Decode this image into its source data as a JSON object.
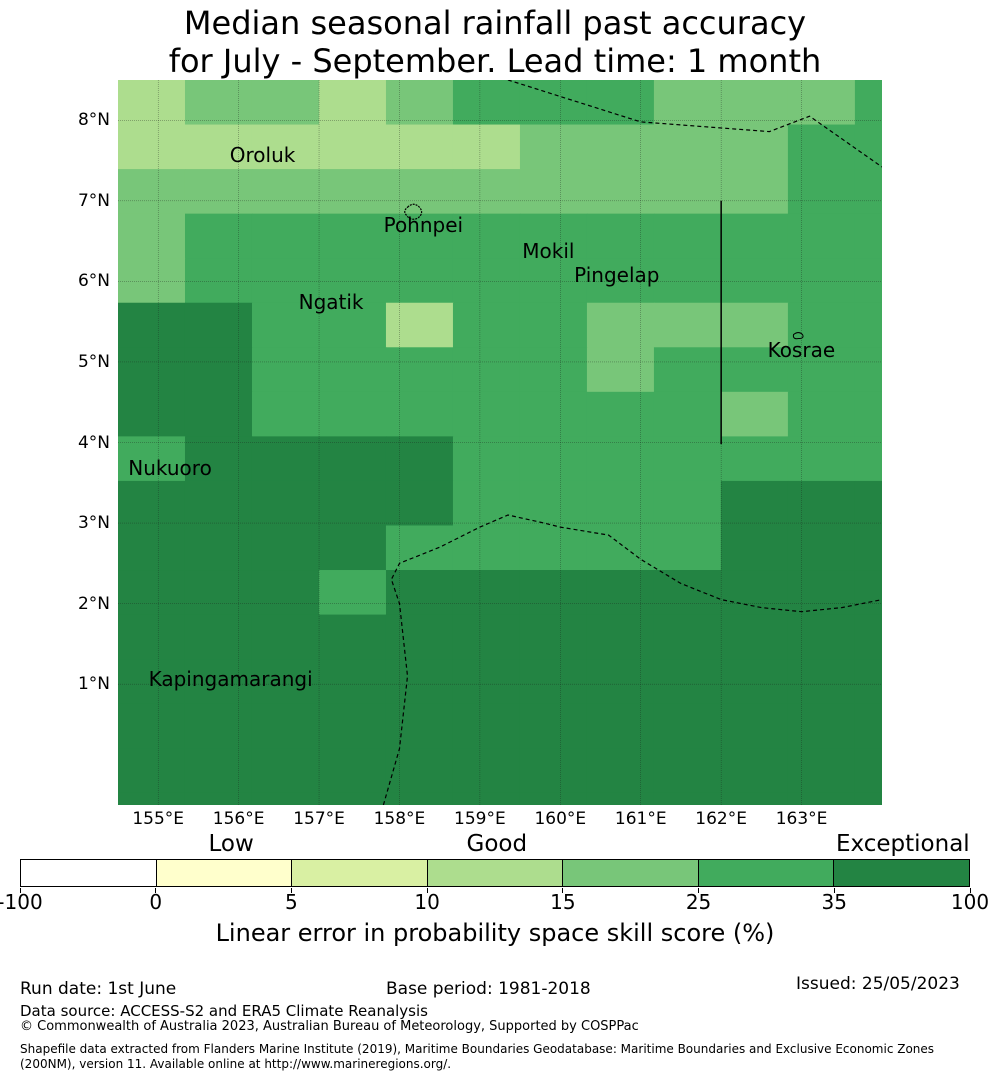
{
  "title": {
    "line1": "Median seasonal rainfall past accuracy",
    "line2": "for July - September. Lead time: 1 month"
  },
  "map": {
    "lon_range": [
      154.5,
      164.0
    ],
    "lat_range": [
      -0.5,
      8.5
    ],
    "lat_labels": [
      {
        "lat": 8,
        "text": "8°N"
      },
      {
        "lat": 7,
        "text": "7°N"
      },
      {
        "lat": 6,
        "text": "6°N"
      },
      {
        "lat": 5,
        "text": "5°N"
      },
      {
        "lat": 4,
        "text": "4°N"
      },
      {
        "lat": 3,
        "text": "3°N"
      },
      {
        "lat": 2,
        "text": "2°N"
      },
      {
        "lat": 1,
        "text": "1°N"
      }
    ],
    "lon_labels": [
      {
        "lon": 155,
        "text": "155°E"
      },
      {
        "lon": 156,
        "text": "156°E"
      },
      {
        "lon": 157,
        "text": "157°E"
      },
      {
        "lon": 158,
        "text": "158°E"
      },
      {
        "lon": 159,
        "text": "159°E"
      },
      {
        "lon": 160,
        "text": "160°E"
      },
      {
        "lon": 161,
        "text": "161°E"
      },
      {
        "lon": 162,
        "text": "162°E"
      },
      {
        "lon": 163,
        "text": "163°E"
      }
    ],
    "grid_lon_start": 154.5,
    "grid_lat_top": 8.5,
    "grid_cell_lon": 0.833,
    "grid_cell_lat": 0.553,
    "grid_rows": [
      [
        3,
        4,
        4,
        3,
        4,
        5,
        5,
        5,
        4,
        4,
        4,
        5,
        5,
        4,
        4,
        4,
        4,
        4
      ],
      [
        3,
        3,
        3,
        3,
        3,
        3,
        4,
        4,
        4,
        4,
        5,
        5,
        5,
        4,
        4,
        4,
        4,
        4
      ],
      [
        4,
        4,
        4,
        4,
        4,
        4,
        4,
        4,
        4,
        4,
        5,
        5,
        5,
        4,
        4,
        4,
        4,
        4
      ],
      [
        4,
        5,
        5,
        5,
        5,
        5,
        5,
        5,
        5,
        5,
        5,
        5,
        5,
        4,
        4,
        4,
        4,
        4
      ],
      [
        4,
        5,
        5,
        5,
        5,
        5,
        5,
        5,
        5,
        5,
        5,
        5,
        4,
        4,
        4,
        4,
        4,
        4
      ],
      [
        6,
        6,
        5,
        5,
        3,
        5,
        5,
        4,
        4,
        4,
        5,
        5,
        5,
        5,
        3,
        3,
        3,
        4
      ],
      [
        6,
        6,
        5,
        5,
        5,
        5,
        5,
        4,
        5,
        5,
        5,
        5,
        5,
        5,
        4,
        3,
        3,
        3
      ],
      [
        6,
        6,
        5,
        5,
        5,
        5,
        5,
        5,
        5,
        4,
        5,
        5,
        5,
        5,
        4,
        4,
        5,
        3
      ],
      [
        5,
        6,
        6,
        6,
        6,
        5,
        5,
        5,
        5,
        5,
        5,
        5,
        5,
        4,
        4,
        5,
        5,
        4
      ],
      [
        6,
        6,
        6,
        6,
        6,
        5,
        5,
        5,
        5,
        6,
        6,
        6,
        6,
        5,
        6,
        6,
        5,
        4
      ],
      [
        6,
        6,
        6,
        6,
        5,
        5,
        5,
        5,
        5,
        6,
        6,
        6,
        6,
        6,
        6,
        6,
        6,
        6
      ],
      [
        6,
        6,
        6,
        5,
        6,
        6,
        6,
        6,
        6,
        6,
        6,
        6,
        6,
        6,
        6,
        6,
        6,
        6
      ],
      [
        6,
        6,
        6,
        6,
        6,
        6,
        6,
        6,
        6,
        6,
        6,
        6,
        6,
        6,
        6,
        6,
        6,
        6
      ],
      [
        6,
        6,
        6,
        6,
        6,
        6,
        6,
        6,
        6,
        6,
        6,
        6,
        6,
        6,
        6,
        6,
        6,
        6
      ],
      [
        6,
        6,
        6,
        6,
        6,
        6,
        6,
        6,
        6,
        6,
        6,
        6,
        6,
        6,
        6,
        6,
        6,
        6
      ],
      [
        6,
        6,
        6,
        6,
        6,
        6,
        6,
        6,
        6,
        6,
        6,
        6,
        6,
        6,
        6,
        6,
        6,
        6
      ],
      [
        6,
        6,
        6,
        6,
        6,
        6,
        6,
        6,
        6,
        6,
        6,
        6,
        6,
        6,
        6,
        6,
        6,
        6
      ]
    ],
    "places": [
      {
        "name": "Oroluk",
        "lon": 156.3,
        "lat": 7.57
      },
      {
        "name": "Pohnpei",
        "lon": 158.3,
        "lat": 6.7
      },
      {
        "name": "Mokil",
        "lon": 159.85,
        "lat": 6.38
      },
      {
        "name": "Pingelap",
        "lon": 160.7,
        "lat": 6.08
      },
      {
        "name": "Ngatik",
        "lon": 157.15,
        "lat": 5.74
      },
      {
        "name": "Kosrae",
        "lon": 163.0,
        "lat": 5.15
      },
      {
        "name": "Nukuoro",
        "lon": 155.15,
        "lat": 3.68
      },
      {
        "name": "Kapingamarangi",
        "lon": 155.9,
        "lat": 1.07
      }
    ]
  },
  "legend": {
    "categories": [
      {
        "text": "Low",
        "value": 0
      },
      {
        "text": "Good",
        "value": 15
      },
      {
        "text": "Exceptional",
        "value": 100
      }
    ],
    "ticks": [
      "-100",
      "0",
      "5",
      "10",
      "15",
      "25",
      "35",
      "100"
    ],
    "colors": [
      "#ffffff",
      "#ffffcc",
      "#d9f0a3",
      "#addd8e",
      "#78c679",
      "#41ab5d",
      "#238443"
    ],
    "label": "Linear error in probability space skill score (%)"
  },
  "footer": {
    "run_date": "Run date: 1st June",
    "base_period": "Base period: 1981-2018",
    "issued": "Issued: 25/05/2023",
    "data_source": "Data source: ACCESS-S2 and ERA5 Climate Reanalysis",
    "copyright": "© Commonwealth of Australia 2023, Australian Bureau of Meteorology, Supported by COSPPac",
    "shapefile": "Shapefile data extracted from Flanders Marine Institute (2019), Maritime Boundaries Geodatabase: Maritime Boundaries and Exclusive Economic Zones",
    "shapefile2": "(200NM), version 11. Available online at http://www.marineregions.org/."
  }
}
